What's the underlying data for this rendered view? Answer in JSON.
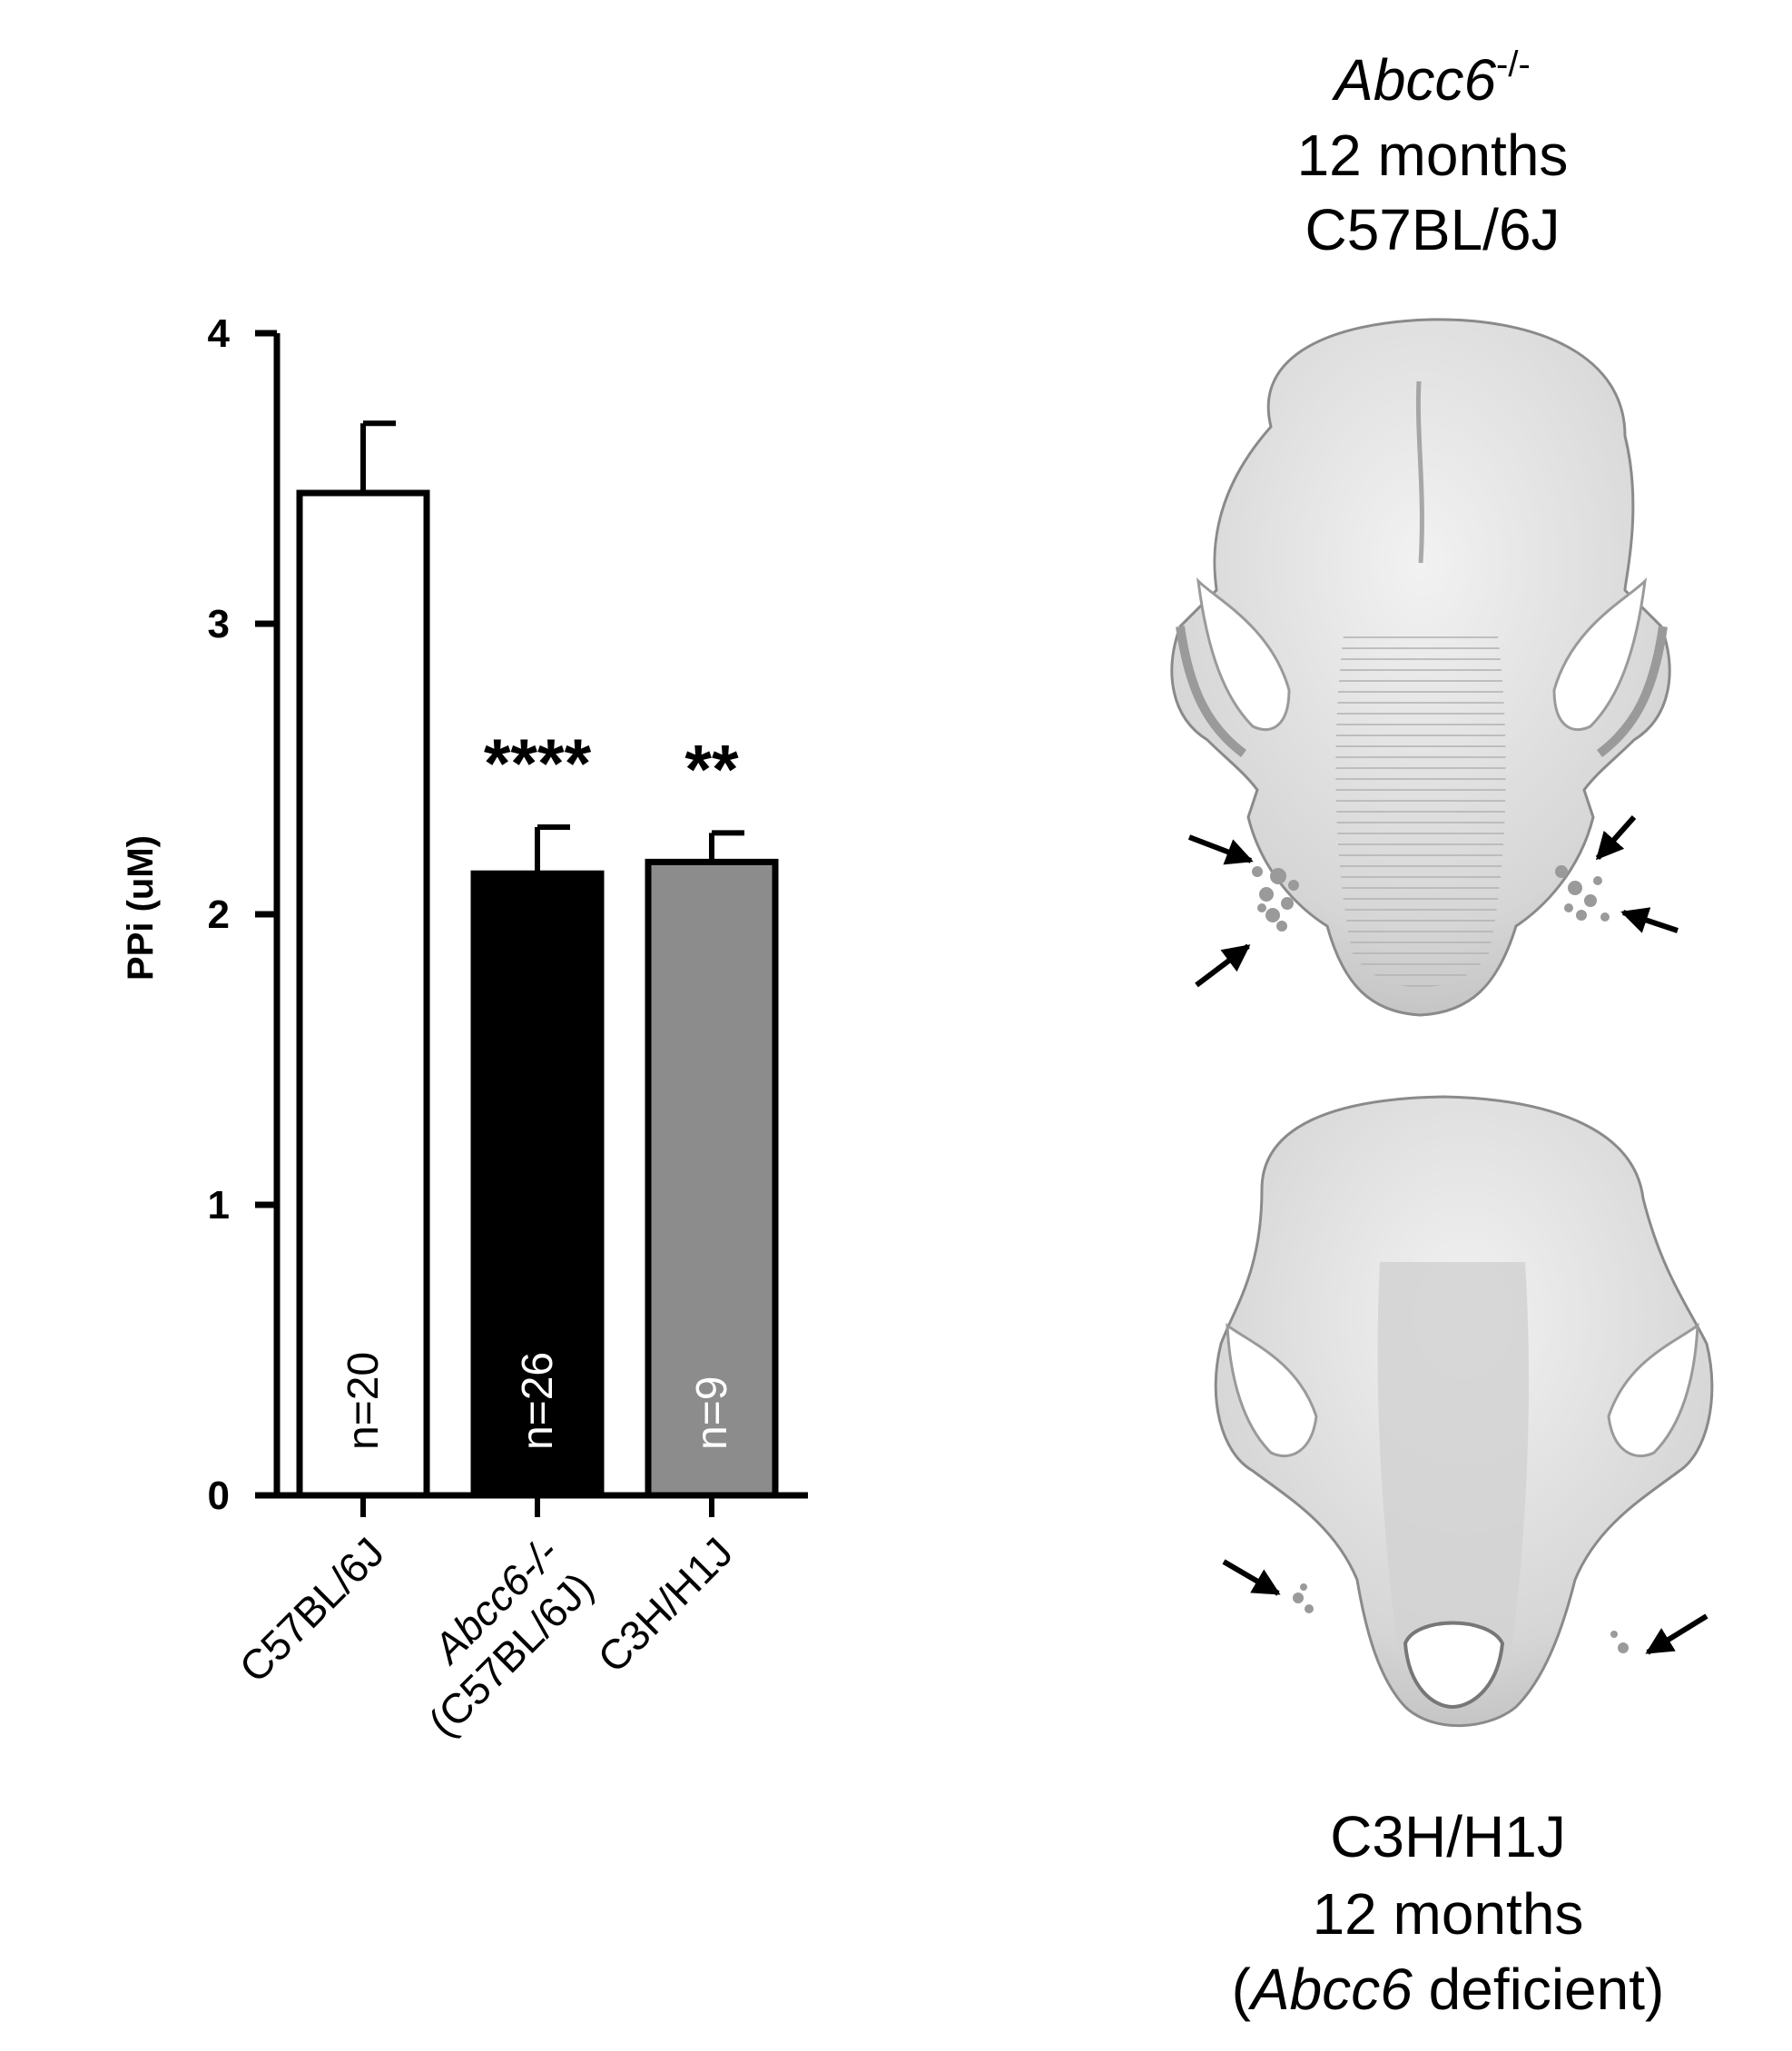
{
  "chart_data": {
    "type": "bar",
    "categories": [
      "C57BL/6J",
      "Abcc6-/- (C57BL/6J)",
      "C3H/H1J"
    ],
    "category_lines": [
      [
        "C57BL/6J"
      ],
      [
        "Abcc6-/-",
        "(C57BL/6J)"
      ],
      [
        "C3H/H1J"
      ]
    ],
    "values": [
      3.45,
      2.14,
      2.18
    ],
    "errors": [
      0.24,
      0.16,
      0.1
    ],
    "n_labels": [
      "n=20",
      "n=26",
      "n=9"
    ],
    "significance": [
      "",
      "****",
      "**"
    ],
    "bar_colors": [
      "#ffffff",
      "#000000",
      "#8c8c8c"
    ],
    "n_label_colors": [
      "#000000",
      "#ffffff",
      "#ffffff"
    ],
    "ylabel": "PPi (uM)",
    "xlabel": "",
    "title": "",
    "ylim": [
      0,
      4
    ],
    "yticks": [
      "0",
      "1",
      "2",
      "3",
      "4"
    ],
    "grid": false,
    "legend": "none"
  },
  "panels": {
    "top": {
      "title_line1_italic": "Abcc6",
      "title_line1_sup": "-/-",
      "title_line2": "12 months",
      "title_line3": "C57BL/6J",
      "image_name": "skull-microct-c57bl6j-abcc6-knockout"
    },
    "bottom": {
      "caption_line1": "C3H/H1J",
      "caption_line2": "12 months",
      "caption_line3_open": "(",
      "caption_line3_italic": "Abcc6",
      "caption_line3_rest": " deficient)",
      "image_name": "skull-microct-c3h-h1j"
    }
  },
  "colors": {
    "axis": "#000000",
    "skull_fill": "#d8d8d8",
    "skull_shade": "#a8a8a8",
    "skull_outline": "#8a8a8a",
    "calcification": "#9a9a9a"
  }
}
